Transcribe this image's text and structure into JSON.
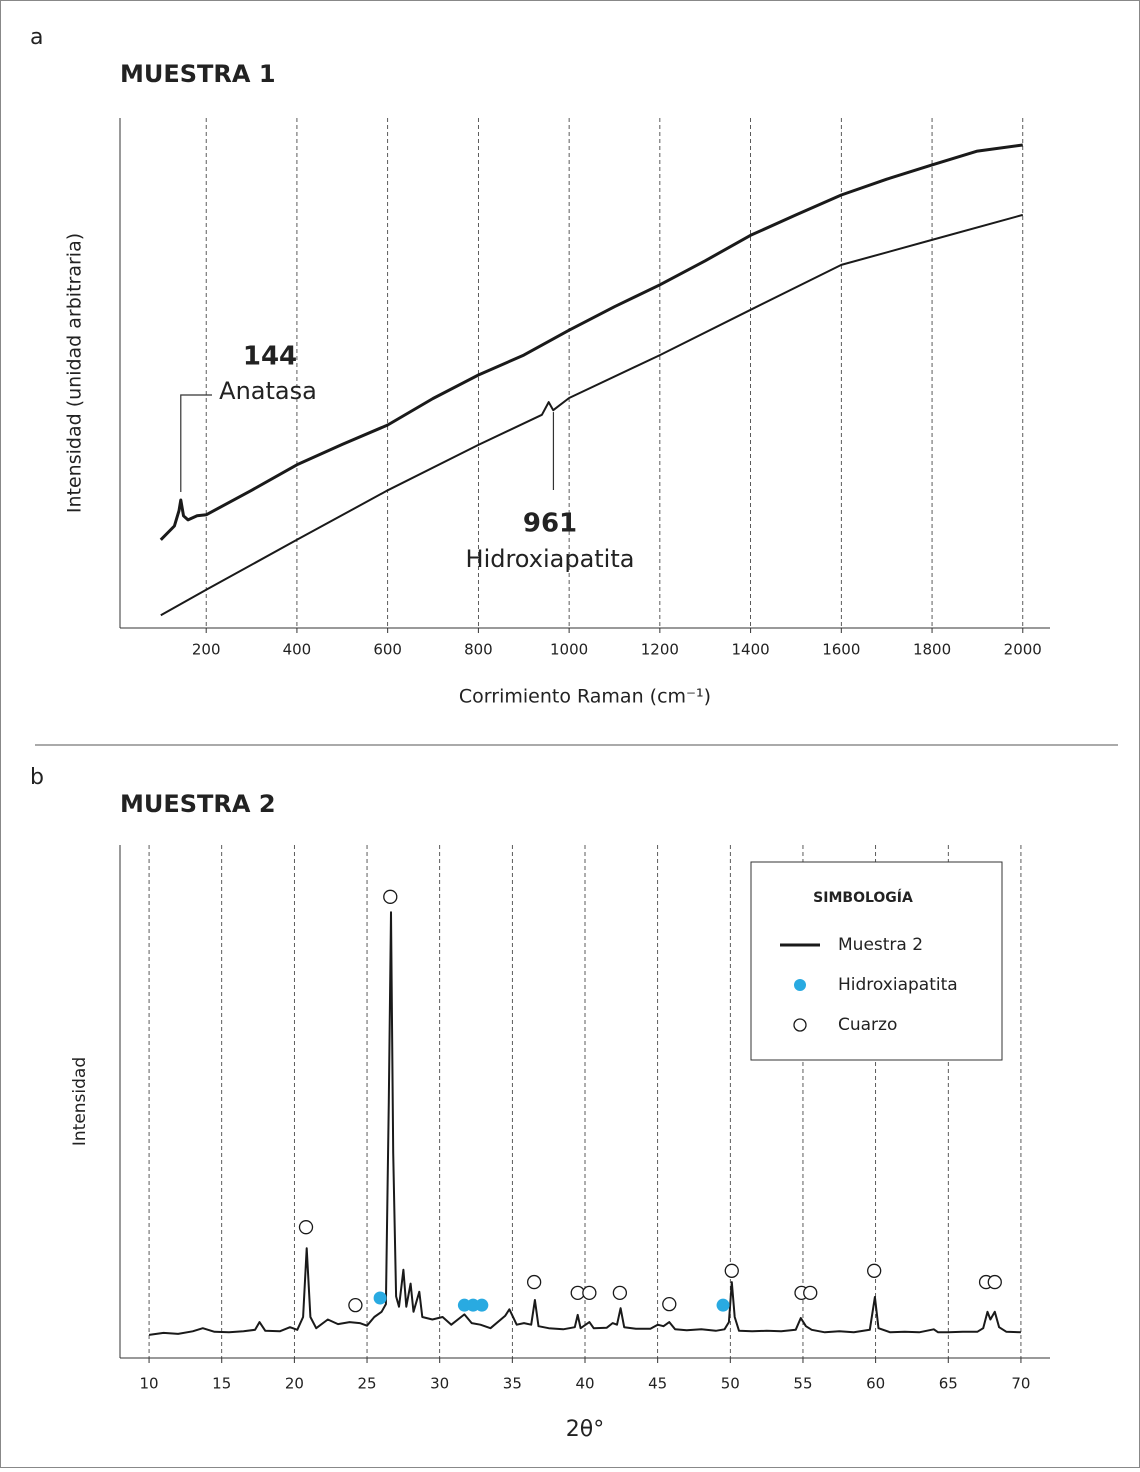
{
  "chart_data": [
    {
      "type": "line",
      "panel_label": "a",
      "title": "MUESTRA 1",
      "xlabel": "Corrimiento Raman (cm⁻¹)",
      "ylabel": "Intensidad (unidad arbitraria)",
      "xlim": [
        10,
        2060
      ],
      "ylim": [
        0,
        100
      ],
      "xticks": [
        200,
        400,
        600,
        800,
        1000,
        1200,
        1400,
        1600,
        1800,
        2000
      ],
      "grid": true,
      "series": [
        {
          "color": "#1a1a1a",
          "x": [
            100,
            130,
            140,
            144,
            150,
            160,
            180,
            200,
            300,
            400,
            500,
            600,
            700,
            800,
            900,
            1000,
            1100,
            1200,
            1300,
            1400,
            1500,
            1600,
            1700,
            1800,
            1900,
            2000
          ],
          "values": [
            17.3,
            20,
            23,
            25.1,
            22,
            21.2,
            22,
            22.2,
            27,
            32,
            36,
            39.8,
            45,
            49.6,
            53.5,
            58.4,
            63,
            67.3,
            72,
            77,
            81,
            84.9,
            88,
            90.8,
            93.5,
            94.7
          ]
        },
        {
          "color": "#1a1a1a",
          "x": [
            100,
            200,
            400,
            600,
            800,
            940,
            955,
            965,
            1000,
            1200,
            1400,
            1600,
            1800,
            2000
          ],
          "values": [
            2.5,
            7.5,
            17.3,
            27,
            35.9,
            41.8,
            44.3,
            42.7,
            45.1,
            53.5,
            62.4,
            71.2,
            76.1,
            81
          ]
        }
      ],
      "annotations": [
        {
          "x": 144,
          "label": "Anatasa"
        },
        {
          "x": 961,
          "label": "Hidroxiapatita"
        }
      ]
    },
    {
      "type": "line",
      "panel_label": "b",
      "title": "MUESTRA 2",
      "xlabel": "2θ°",
      "ylabel": "Intensidad",
      "xlim": [
        8,
        72
      ],
      "ylim": [
        0,
        100
      ],
      "xticks": [
        10,
        15,
        20,
        25,
        30,
        35,
        40,
        45,
        50,
        55,
        60,
        65,
        70
      ],
      "grid": true,
      "legend_title": "SIMBOLOGÍA",
      "legend": "upper right",
      "series": [
        {
          "name": "Muestra 2",
          "type": "line",
          "color": "#1a1a1a",
          "x": [
            10,
            11,
            12,
            13,
            13.7,
            14.5,
            15.5,
            16.5,
            17.3,
            17.6,
            18,
            19,
            19.7,
            20.2,
            20.6,
            20.85,
            21.1,
            21.5,
            22.3,
            23,
            23.8,
            24.5,
            25,
            25.5,
            26,
            26.3,
            26.5,
            26.65,
            26.8,
            27,
            27.2,
            27.5,
            27.7,
            28,
            28.2,
            28.6,
            28.8,
            29.5,
            30.2,
            30.8,
            31.7,
            32.2,
            32.8,
            33.5,
            34.5,
            34.8,
            35.3,
            35.8,
            36.3,
            36.55,
            36.8,
            37.5,
            38.5,
            39.3,
            39.5,
            39.7,
            40.3,
            40.6,
            41.5,
            41.9,
            42.2,
            42.45,
            42.7,
            43.5,
            44.5,
            45,
            45.4,
            45.8,
            46.2,
            47,
            48,
            49,
            49.6,
            49.9,
            50.1,
            50.3,
            50.6,
            51.5,
            52.5,
            53.5,
            54.5,
            54.85,
            55.2,
            55.6,
            56.5,
            57.5,
            58.5,
            59.6,
            59.95,
            60.2,
            61,
            62,
            63,
            64,
            64.3,
            65,
            66,
            67,
            67.4,
            67.7,
            67.9,
            68.2,
            68.5,
            69,
            70
          ],
          "values": [
            4.5,
            4.9,
            4.7,
            5.2,
            5.8,
            5.1,
            5.0,
            5.2,
            5.5,
            7.0,
            5.3,
            5.2,
            6.0,
            5.5,
            8,
            21.4,
            8,
            5.8,
            7.5,
            6.6,
            7.0,
            6.8,
            6.3,
            8.0,
            9.0,
            10.5,
            50,
            86.9,
            40,
            12,
            10,
            17.2,
            10,
            14.5,
            9,
            12.9,
            8,
            7.5,
            8,
            6.5,
            8.5,
            6.8,
            6.5,
            5.8,
            8.2,
            9.5,
            6.5,
            6.8,
            6.5,
            11.3,
            6.2,
            5.8,
            5.6,
            6.0,
            8.4,
            5.8,
            7.0,
            5.8,
            5.9,
            6.8,
            6.5,
            9.7,
            6.0,
            5.7,
            5.7,
            6.5,
            6.2,
            7.0,
            5.6,
            5.4,
            5.6,
            5.3,
            5.6,
            7.0,
            14.8,
            8,
            5.3,
            5.2,
            5.3,
            5.2,
            5.5,
            7.8,
            6.2,
            5.5,
            5.0,
            5.2,
            5.0,
            5.5,
            11.9,
            5.8,
            5.0,
            5.1,
            5.0,
            5.6,
            5.0,
            5.0,
            5.1,
            5.1,
            5.8,
            9.0,
            7.5,
            9.0,
            6.0,
            5.1,
            5.0
          ]
        },
        {
          "name": "Hidroxiapatita",
          "type": "scatter",
          "marker": "filled",
          "color": "#29aae1",
          "x": [
            25.9,
            31.7,
            32.3,
            32.9,
            49.5
          ],
          "values": [
            11.7,
            10.3,
            10.3,
            10.3,
            10.3
          ]
        },
        {
          "name": "Cuarzo",
          "type": "scatter",
          "marker": "open",
          "color": "#1a1a1a",
          "x": [
            20.8,
            24.2,
            26.6,
            36.5,
            39.5,
            40.3,
            42.4,
            45.8,
            50.1,
            54.9,
            55.5,
            59.9,
            67.6,
            68.2
          ],
          "values": [
            25.5,
            10.3,
            89.9,
            14.8,
            12.7,
            12.7,
            12.7,
            10.5,
            17,
            12.7,
            12.7,
            17,
            14.8,
            14.8
          ]
        }
      ]
    }
  ]
}
